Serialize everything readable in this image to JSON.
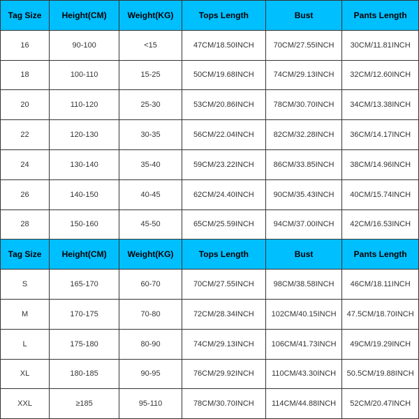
{
  "table": {
    "header_bg": "#00bfff",
    "border_color": "#333333",
    "font_size_header": 12,
    "font_size_cell": 11,
    "headers": [
      "Tag Size",
      "Height(CM)",
      "Weight(KG)",
      "Tops Length",
      "Bust",
      "Pants Length"
    ],
    "section1_rows": [
      [
        "16",
        "90-100",
        "<15",
        "47CM/18.50INCH",
        "70CM/27.55INCH",
        "30CM/11.81INCH"
      ],
      [
        "18",
        "100-110",
        "15-25",
        "50CM/19.68INCH",
        "74CM/29.13INCH",
        "32CM/12.60INCH"
      ],
      [
        "20",
        "110-120",
        "25-30",
        "53CM/20.86INCH",
        "78CM/30.70INCH",
        "34CM/13.38INCH"
      ],
      [
        "22",
        "120-130",
        "30-35",
        "56CM/22.04INCH",
        "82CM/32.28INCH",
        "36CM/14.17INCH"
      ],
      [
        "24",
        "130-140",
        "35-40",
        "59CM/23.22INCH",
        "86CM/33.85INCH",
        "38CM/14.96INCH"
      ],
      [
        "26",
        "140-150",
        "40-45",
        "62CM/24.40INCH",
        "90CM/35.43INCH",
        "40CM/15.74INCH"
      ],
      [
        "28",
        "150-160",
        "45-50",
        "65CM/25.59INCH",
        "94CM/37.00INCH",
        "42CM/16.53INCH"
      ]
    ],
    "section2_rows": [
      [
        "S",
        "165-170",
        "60-70",
        "70CM/27.55INCH",
        "98CM/38.58INCH",
        "46CM/18.11INCH"
      ],
      [
        "M",
        "170-175",
        "70-80",
        "72CM/28.34INCH",
        "102CM/40.15INCH",
        "47.5CM/18.70INCH"
      ],
      [
        "L",
        "175-180",
        "80-90",
        "74CM/29.13INCH",
        "106CM/41.73INCH",
        "49CM/19.29INCH"
      ],
      [
        "XL",
        "180-185",
        "90-95",
        "76CM/29.92INCH",
        "110CM/43.30INCH",
        "50.5CM/19.88INCH"
      ],
      [
        "XXL",
        "≥185",
        "95-110",
        "78CM/30.70INCH",
        "114CM/44.88INCH",
        "52CM/20.47INCH"
      ]
    ]
  }
}
